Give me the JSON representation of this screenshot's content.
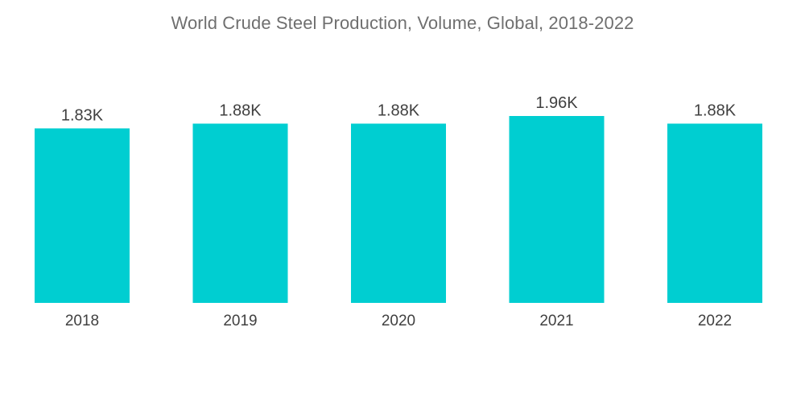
{
  "chart_data": {
    "type": "bar",
    "title": "World Crude Steel Production, Volume, Global, 2018-2022",
    "categories": [
      "2018",
      "2019",
      "2020",
      "2021",
      "2022"
    ],
    "values": [
      1.83,
      1.88,
      1.88,
      1.96,
      1.88
    ],
    "value_labels": [
      "1.83K",
      "1.88K",
      "1.88K",
      "1.96K",
      "1.88K"
    ],
    "xlabel": "",
    "ylabel": "",
    "ylim": [
      0,
      2.0
    ],
    "grid": false,
    "legend": "none",
    "bar_color": "#00ced1"
  }
}
